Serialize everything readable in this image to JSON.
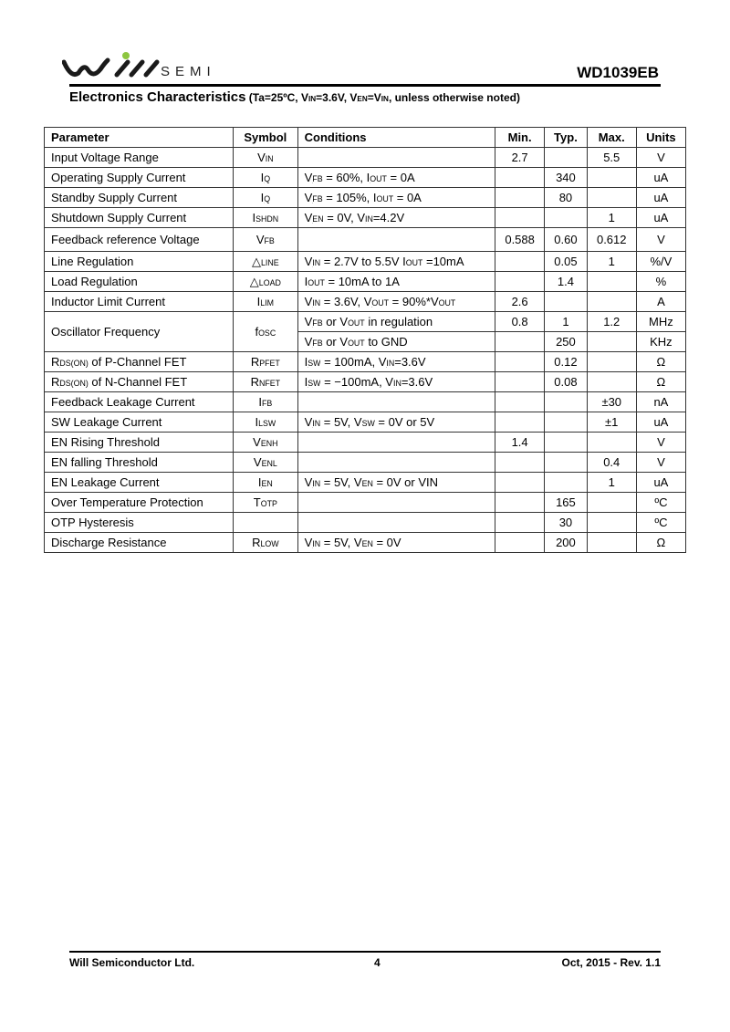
{
  "header": {
    "logo_text": "Will SEMI",
    "semi_label": "SEMI",
    "part_number": "WD1039EB",
    "logo_colors": {
      "mark": "#1a1a1a",
      "dot": "#8dc63f"
    }
  },
  "section": {
    "title": "Electronics Characteristics",
    "conditions": [
      " (Ta=25ºC, V",
      "_IN",
      "=3.6V, V",
      "_EN",
      "=V",
      "_IN",
      ", unless otherwise noted)"
    ]
  },
  "table": {
    "headers": [
      "Parameter",
      "Symbol",
      "Conditions",
      "Min.",
      "Typ.",
      "Max.",
      "Units"
    ],
    "rows": [
      {
        "param": [
          "Input Voltage Range"
        ],
        "symbol": [
          "V",
          "_IN"
        ],
        "cond": [],
        "min": "2.7",
        "typ": "",
        "max": "5.5",
        "units": "V"
      },
      {
        "param": [
          "Operating Supply Current"
        ],
        "symbol": [
          "I",
          "_Q"
        ],
        "cond": [
          "V",
          "_FB",
          " = 60%, I",
          "_OUT",
          " = 0A"
        ],
        "min": "",
        "typ": "340",
        "max": "",
        "units": "uA"
      },
      {
        "param": [
          "Standby Supply Current"
        ],
        "symbol": [
          "I",
          "_Q"
        ],
        "cond": [
          "V",
          "_FB",
          " = 105%, I",
          "_OUT",
          " = 0A"
        ],
        "min": "",
        "typ": "80",
        "max": "",
        "units": "uA"
      },
      {
        "param": [
          "Shutdown Supply Current"
        ],
        "symbol": [
          "I",
          "_SHDN"
        ],
        "cond": [
          "V",
          "_EN",
          " = 0V, V",
          "_IN",
          "=4.2V"
        ],
        "min": "",
        "typ": "",
        "max": "1",
        "units": "uA"
      },
      {
        "param": [
          "Feedback reference Voltage"
        ],
        "symbol": [
          "V",
          "_FB"
        ],
        "cond": [],
        "min": "0.588",
        "typ": "0.60",
        "max": "0.612",
        "units": "V",
        "tall": true
      },
      {
        "param": [
          "Line Regulation"
        ],
        "symbol": [
          "△",
          "_LINE"
        ],
        "cond": [
          "V",
          "_IN",
          " = 2.7V to 5.5V I",
          "_OUT",
          " =10mA"
        ],
        "min": "",
        "typ": "0.05",
        "max": "1",
        "units": "%/V"
      },
      {
        "param": [
          "Load Regulation"
        ],
        "symbol": [
          "△",
          "_LOAD"
        ],
        "cond": [
          "I",
          "_OUT",
          " = 10mA to 1A"
        ],
        "min": "",
        "typ": "1.4",
        "max": "",
        "units": "%"
      },
      {
        "param": [
          "Inductor Limit Current"
        ],
        "symbol": [
          "I",
          "_LIM"
        ],
        "cond": [
          "V",
          "_IN",
          " = 3.6V, V",
          "_OUT",
          " = 90%*V",
          "_OUT"
        ],
        "min": "2.6",
        "typ": "",
        "max": "",
        "units": "A"
      },
      {
        "param": [
          "Oscillator Frequency"
        ],
        "symbol": [
          "f",
          "_OSC"
        ],
        "cond": [
          "V",
          "_FB",
          " or V",
          "_OUT",
          " in regulation"
        ],
        "min": "0.8",
        "typ": "1",
        "max": "1.2",
        "units": "MHz",
        "span": true
      },
      {
        "cond": [
          "V",
          "_FB",
          " or V",
          "_OUT",
          " to GND"
        ],
        "min": "",
        "typ": "250",
        "max": "",
        "units": "KHz",
        "sub": true
      },
      {
        "param": [
          "R",
          "_DS(ON)",
          " of P-Channel FET"
        ],
        "symbol": [
          "R",
          "_PFET"
        ],
        "cond": [
          "I",
          "_SW",
          " = 100mA, V",
          "_IN",
          "=3.6V"
        ],
        "min": "",
        "typ": "0.12",
        "max": "",
        "units": "Ω"
      },
      {
        "param": [
          "R",
          "_DS(ON)",
          " of N-Channel FET"
        ],
        "symbol": [
          "R",
          "_NFET"
        ],
        "cond": [
          "I",
          "_SW",
          " = −100mA, V",
          "_IN",
          "=3.6V"
        ],
        "min": "",
        "typ": "0.08",
        "max": "",
        "units": "Ω"
      },
      {
        "param": [
          "Feedback Leakage Current"
        ],
        "symbol": [
          "I",
          "_FB"
        ],
        "cond": [],
        "min": "",
        "typ": "",
        "max": "±30",
        "units": "nA"
      },
      {
        "param": [
          "SW Leakage Current"
        ],
        "symbol": [
          "I",
          "_LSW"
        ],
        "cond": [
          "V",
          "_IN",
          " = 5V, V",
          "_SW",
          " = 0V or 5V"
        ],
        "min": "",
        "typ": "",
        "max": "±1",
        "units": "uA"
      },
      {
        "param": [
          "EN Rising Threshold"
        ],
        "symbol": [
          "V",
          "_ENH"
        ],
        "cond": [],
        "min": "1.4",
        "typ": "",
        "max": "",
        "units": "V"
      },
      {
        "param": [
          "EN falling Threshold"
        ],
        "symbol": [
          "V",
          "_ENL"
        ],
        "cond": [],
        "min": "",
        "typ": "",
        "max": "0.4",
        "units": "V"
      },
      {
        "param": [
          "EN Leakage Current"
        ],
        "symbol": [
          "I",
          "_EN"
        ],
        "cond": [
          "V",
          "_IN",
          " = 5V, V",
          "_EN",
          " = 0V or VIN"
        ],
        "min": "",
        "typ": "",
        "max": "1",
        "units": "uA"
      },
      {
        "param": [
          "Over Temperature Protection"
        ],
        "symbol": [
          "T",
          "_OTP"
        ],
        "cond": [],
        "min": "",
        "typ": "165",
        "max": "",
        "units": "ºC"
      },
      {
        "param": [
          "OTP Hysteresis"
        ],
        "symbol": [],
        "cond": [],
        "min": "",
        "typ": "30",
        "max": "",
        "units": "ºC"
      },
      {
        "param": [
          "Discharge Resistance"
        ],
        "symbol": [
          "R",
          "_LOW"
        ],
        "cond": [
          "V",
          "_IN",
          " = 5V, V",
          "_EN",
          " = 0V"
        ],
        "min": "",
        "typ": "200",
        "max": "",
        "units": "Ω"
      }
    ]
  },
  "footer": {
    "company": "Will Semiconductor Ltd.",
    "page": "4",
    "date_rev": "Oct, 2015 - Rev. 1.1"
  }
}
